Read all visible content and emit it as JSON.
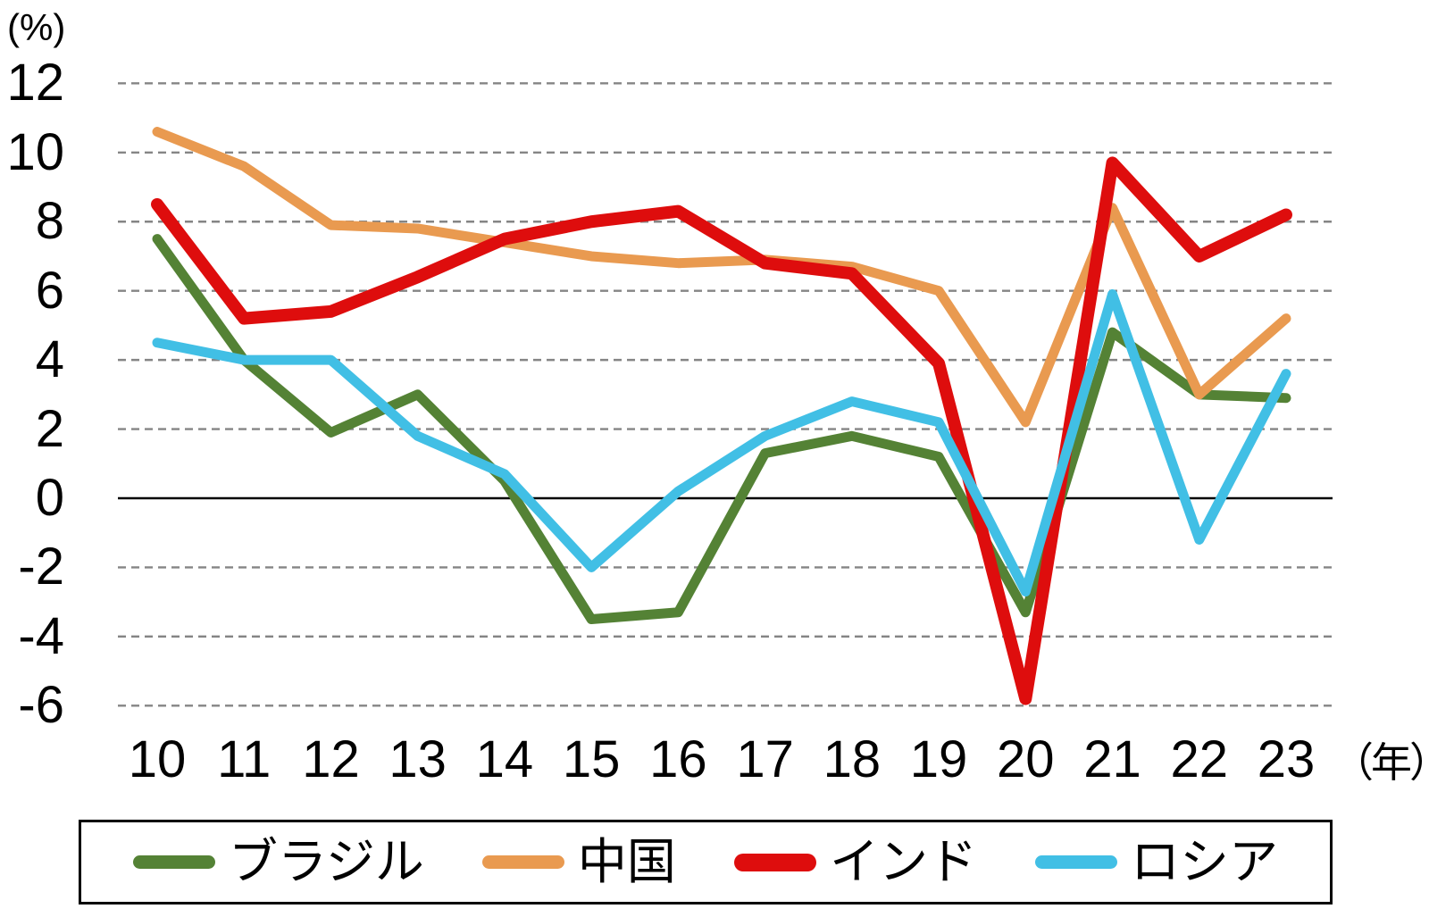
{
  "chart_data": {
    "type": "line",
    "title": "",
    "y_axis_unit": "(%)",
    "x_axis_unit": "（年）",
    "categories": [
      "10",
      "11",
      "12",
      "13",
      "14",
      "15",
      "16",
      "17",
      "18",
      "19",
      "20",
      "21",
      "22",
      "23"
    ],
    "y_ticks": [
      "12",
      "10",
      "8",
      "6",
      "4",
      "2",
      "0",
      "-2",
      "-4",
      "-6"
    ],
    "ylim": [
      -6,
      12
    ],
    "grid": "horizontal-dashed",
    "gridline_color": "#858585",
    "zero_line": true,
    "legend_position": "bottom",
    "legend_border_color": "#000000",
    "series": [
      {
        "id": "brazil",
        "name": "ブラジル",
        "color": "#548235",
        "values": [
          7.5,
          4.0,
          1.9,
          3.0,
          0.5,
          -3.5,
          -3.3,
          1.3,
          1.8,
          1.2,
          -3.3,
          4.8,
          3.0,
          2.9
        ]
      },
      {
        "id": "china",
        "name": "中国",
        "color": "#E99A50",
        "values": [
          10.6,
          9.6,
          7.9,
          7.8,
          7.4,
          7.0,
          6.8,
          6.9,
          6.7,
          6.0,
          2.2,
          8.4,
          3.0,
          5.2
        ]
      },
      {
        "id": "india",
        "name": "インド",
        "color": "#DE0D0D",
        "values": [
          8.5,
          5.2,
          5.4,
          6.4,
          7.5,
          8.0,
          8.3,
          6.8,
          6.5,
          3.9,
          -5.8,
          9.7,
          7.0,
          8.2
        ]
      },
      {
        "id": "russia",
        "name": "ロシア",
        "color": "#41BFE5",
        "values": [
          4.5,
          4.0,
          4.0,
          1.8,
          0.7,
          -2.0,
          0.2,
          1.8,
          2.8,
          2.2,
          -2.7,
          5.9,
          -1.2,
          3.6
        ]
      }
    ]
  }
}
